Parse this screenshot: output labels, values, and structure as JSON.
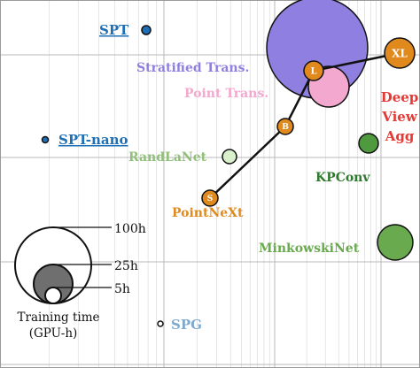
{
  "chart_data": {
    "type": "scatter",
    "title": "",
    "xlabel": "",
    "ylabel": "",
    "x_scale": "log",
    "grid": true,
    "series": [
      {
        "label": "SPT",
        "color": "#1f6fb5",
        "size_class": "tiny",
        "underline": true
      },
      {
        "label": "SPT-nano",
        "color": "#1f6fb5",
        "size_class": "tiny",
        "underline": true
      },
      {
        "label": "Stratified Trans.",
        "color": "#8f7fe0",
        "size_class": "huge"
      },
      {
        "label": "Point Trans.",
        "color": "#f3a8cf",
        "size_class": "medium"
      },
      {
        "label": "Deep View Agg",
        "color": "#e53935",
        "size_class": "small"
      },
      {
        "label": "RandLaNet",
        "color": "#8fbf78",
        "size_class": "small"
      },
      {
        "label": "KPConv",
        "color": "#3f8f3f",
        "size_class": "small"
      },
      {
        "label": "MinkowskiNet",
        "color": "#6aaa4f",
        "size_class": "medium"
      },
      {
        "label": "SPG",
        "color": "#7fa9cf",
        "size_class": "tiny"
      },
      {
        "label": "PointNeXt",
        "color": "#e08a1e",
        "variants": [
          "S",
          "B",
          "L",
          "XL"
        ]
      }
    ],
    "size_legend": {
      "title_line1": "Training time",
      "title_line2": "(GPU-h)",
      "levels": [
        "100h",
        "25h",
        "5h"
      ]
    }
  }
}
